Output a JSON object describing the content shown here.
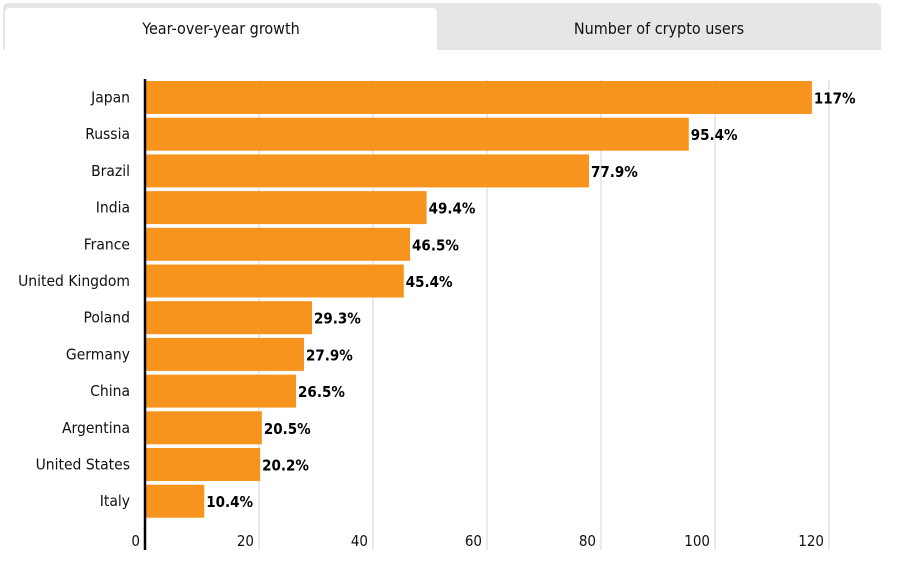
{
  "tabs": [
    {
      "label": "Year-over-year growth",
      "active": true
    },
    {
      "label": "Number of crypto users",
      "active": false
    }
  ],
  "colors": {
    "bar": "#f7941d",
    "grid": "#e3e3e3",
    "axis": "#000000",
    "tab_bg": "#e6e6e6"
  },
  "chart_data": {
    "type": "bar",
    "orientation": "horizontal",
    "categories": [
      "Japan",
      "Russia",
      "Brazil",
      "India",
      "France",
      "United Kingdom",
      "Poland",
      "Germany",
      "China",
      "Argentina",
      "United States",
      "Italy"
    ],
    "values": [
      117,
      95.4,
      77.9,
      49.4,
      46.5,
      45.4,
      29.3,
      27.9,
      26.5,
      20.5,
      20.2,
      10.4
    ],
    "data_labels": [
      "117%",
      "95.4%",
      "77.9%",
      "49.4%",
      "46.5%",
      "45.4%",
      "29.3%",
      "27.9%",
      "26.5%",
      "20.5%",
      "20.2%",
      "10.4%"
    ],
    "xlim": [
      0,
      120
    ],
    "xticks": [
      "0",
      "20",
      "40",
      "60",
      "80",
      "100",
      "120"
    ],
    "grid": true,
    "title": "",
    "xlabel": "",
    "ylabel": ""
  }
}
